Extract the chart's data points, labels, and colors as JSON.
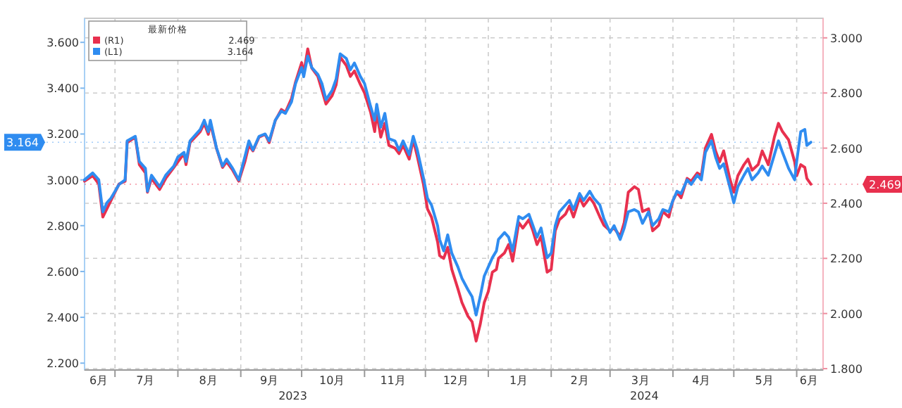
{
  "chart_data": {
    "type": "line",
    "legend_title": "最新价格",
    "legend": "top left",
    "grid": true,
    "line_style": "solid",
    "marker": "none",
    "x": [
      "2023-06-16",
      "2023-06-20",
      "2023-06-23",
      "2023-06-25",
      "2023-06-27",
      "2023-06-29",
      "2023-07-03",
      "2023-07-06",
      "2023-07-07",
      "2023-07-11",
      "2023-07-13",
      "2023-07-16",
      "2023-07-17",
      "2023-07-19",
      "2023-07-23",
      "2023-07-26",
      "2023-07-30",
      "2023-08-01",
      "2023-08-04",
      "2023-08-05",
      "2023-08-07",
      "2023-08-12",
      "2023-08-14",
      "2023-08-16",
      "2023-08-17",
      "2023-08-20",
      "2023-08-23",
      "2023-08-25",
      "2023-08-28",
      "2023-08-31",
      "2023-09-03",
      "2023-09-05",
      "2023-09-07",
      "2023-09-10",
      "2023-09-13",
      "2023-09-15",
      "2023-09-18",
      "2023-09-21",
      "2023-09-23",
      "2023-09-26",
      "2023-09-28",
      "2023-10-01",
      "2023-10-02",
      "2023-10-04",
      "2023-10-06",
      "2023-10-09",
      "2023-10-11",
      "2023-10-13",
      "2023-10-16",
      "2023-10-18",
      "2023-10-20",
      "2023-10-23",
      "2023-10-25",
      "2023-10-27",
      "2023-10-30",
      "2023-11-01",
      "2023-11-04",
      "2023-11-06",
      "2023-11-07",
      "2023-11-09",
      "2023-11-11",
      "2023-11-13",
      "2023-11-16",
      "2023-11-18",
      "2023-11-20",
      "2023-11-23",
      "2023-11-25",
      "2023-11-27",
      "2023-11-30",
      "2023-12-02",
      "2023-12-04",
      "2023-12-07",
      "2023-12-08",
      "2023-12-10",
      "2023-12-12",
      "2023-12-14",
      "2023-12-17",
      "2023-12-19",
      "2023-12-22",
      "2023-12-24",
      "2023-12-26",
      "2023-12-28",
      "2023-12-30",
      "2024-01-01",
      "2024-01-03",
      "2024-01-05",
      "2024-01-06",
      "2024-01-09",
      "2024-01-11",
      "2024-01-13",
      "2024-01-16",
      "2024-01-18",
      "2024-01-21",
      "2024-01-23",
      "2024-01-25",
      "2024-01-27",
      "2024-01-30",
      "2024-02-01",
      "2024-02-03",
      "2024-02-05",
      "2024-02-08",
      "2024-02-10",
      "2024-02-12",
      "2024-02-15",
      "2024-02-17",
      "2024-02-20",
      "2024-02-22",
      "2024-02-25",
      "2024-02-27",
      "2024-03-01",
      "2024-03-03",
      "2024-03-06",
      "2024-03-08",
      "2024-03-10",
      "2024-03-13",
      "2024-03-15",
      "2024-03-17",
      "2024-03-20",
      "2024-03-22",
      "2024-03-25",
      "2024-03-27",
      "2024-03-30",
      "2024-04-01",
      "2024-04-03",
      "2024-04-05",
      "2024-04-08",
      "2024-04-10",
      "2024-04-13",
      "2024-04-15",
      "2024-04-17",
      "2024-04-20",
      "2024-04-22",
      "2024-04-24",
      "2024-04-26",
      "2024-04-29",
      "2024-05-01",
      "2024-05-03",
      "2024-05-06",
      "2024-05-08",
      "2024-05-10",
      "2024-05-13",
      "2024-05-15",
      "2024-05-18",
      "2024-05-21",
      "2024-05-23",
      "2024-05-25",
      "2024-05-28",
      "2024-05-31",
      "2024-06-01",
      "2024-06-03",
      "2024-06-05",
      "2024-06-06",
      "2024-06-08"
    ],
    "xlim": [
      "2023-06-16",
      "2024-06-14"
    ],
    "xticks": [
      {
        "value": "2023-06-23",
        "label": "6月"
      },
      {
        "value": "2023-07-01",
        "label": null
      },
      {
        "value": "2023-07-16",
        "label": "7月"
      },
      {
        "value": "2023-08-01",
        "label": null
      },
      {
        "value": "2023-08-16",
        "label": "8月"
      },
      {
        "value": "2023-09-01",
        "label": null
      },
      {
        "value": "2023-09-15",
        "label": "9月"
      },
      {
        "value": "2023-10-01",
        "label": null
      },
      {
        "value": "2023-10-16",
        "label": "10月"
      },
      {
        "value": "2023-11-01",
        "label": null
      },
      {
        "value": "2023-11-15",
        "label": "11月"
      },
      {
        "value": "2023-12-01",
        "label": null
      },
      {
        "value": "2023-12-16",
        "label": "12月"
      },
      {
        "value": "2024-01-01",
        "label": null
      },
      {
        "value": "2024-01-16",
        "label": "1月"
      },
      {
        "value": "2024-02-01",
        "label": null
      },
      {
        "value": "2024-02-15",
        "label": "2月"
      },
      {
        "value": "2024-03-01",
        "label": null
      },
      {
        "value": "2024-03-16",
        "label": "3月"
      },
      {
        "value": "2024-04-01",
        "label": null
      },
      {
        "value": "2024-04-15",
        "label": "4月"
      },
      {
        "value": "2024-05-01",
        "label": null
      },
      {
        "value": "2024-05-16",
        "label": "5月"
      },
      {
        "value": "2024-06-01",
        "label": null
      },
      {
        "value": "2024-06-07",
        "label": "6月"
      }
    ],
    "ylim": [
      2.17,
      3.705
    ],
    "yticks": [
      {
        "value": 2.2,
        "label": "2.200"
      },
      {
        "value": 2.4,
        "label": "2.400"
      },
      {
        "value": 2.6,
        "label": "2.600"
      },
      {
        "value": 2.8,
        "label": "2.800"
      },
      {
        "value": 3.0,
        "label": "3.000"
      },
      {
        "value": 3.2,
        "label": "3.200"
      },
      {
        "value": 3.4,
        "label": "3.400"
      },
      {
        "value": 3.6,
        "label": "3.600"
      }
    ],
    "y2lim": [
      1.795,
      3.071
    ],
    "y2ticks": [
      {
        "value": 1.8,
        "label": "1.800"
      },
      {
        "value": 2.0,
        "label": "2.000"
      },
      {
        "value": 2.2,
        "label": "2.200"
      },
      {
        "value": 2.4,
        "label": "2.400"
      },
      {
        "value": 2.6,
        "label": "2.600"
      },
      {
        "value": 2.8,
        "label": "2.800"
      },
      {
        "value": 3.0,
        "label": "3.000"
      }
    ],
    "annotations": [
      "2023",
      "2024"
    ],
    "ref_lines": [
      {
        "axis": "y",
        "value": 3.164,
        "label": "3.164",
        "color": "#2f8cf0"
      },
      {
        "axis": "y2",
        "value": 2.469,
        "label": "2.469",
        "color": "#e8304e"
      }
    ],
    "series": [
      {
        "name": "(R1)                                    2.469",
        "color": "#e8304e",
        "axis": "y2",
        "values": [
          2.48,
          2.5,
          2.47,
          2.35,
          2.38,
          2.41,
          2.47,
          2.48,
          2.62,
          2.64,
          2.54,
          2.51,
          2.44,
          2.49,
          2.45,
          2.49,
          2.53,
          2.55,
          2.58,
          2.54,
          2.62,
          2.66,
          2.69,
          2.65,
          2.69,
          2.6,
          2.53,
          2.55,
          2.52,
          2.48,
          2.55,
          2.61,
          2.59,
          2.64,
          2.65,
          2.62,
          2.7,
          2.74,
          2.73,
          2.78,
          2.84,
          2.91,
          2.87,
          2.96,
          2.89,
          2.86,
          2.81,
          2.76,
          2.79,
          2.83,
          2.93,
          2.9,
          2.86,
          2.88,
          2.83,
          2.8,
          2.73,
          2.66,
          2.73,
          2.64,
          2.69,
          2.61,
          2.6,
          2.58,
          2.61,
          2.56,
          2.63,
          2.57,
          2.47,
          2.38,
          2.35,
          2.26,
          2.21,
          2.2,
          2.24,
          2.16,
          2.09,
          2.04,
          1.99,
          1.97,
          1.9,
          1.96,
          2.04,
          2.08,
          2.15,
          2.16,
          2.2,
          2.22,
          2.25,
          2.19,
          2.33,
          2.31,
          2.34,
          2.3,
          2.25,
          2.28,
          2.15,
          2.16,
          2.3,
          2.34,
          2.36,
          2.39,
          2.35,
          2.42,
          2.39,
          2.42,
          2.4,
          2.35,
          2.32,
          2.3,
          2.31,
          2.28,
          2.33,
          2.44,
          2.46,
          2.45,
          2.37,
          2.38,
          2.3,
          2.32,
          2.37,
          2.35,
          2.41,
          2.44,
          2.42,
          2.49,
          2.48,
          2.51,
          2.5,
          2.6,
          2.65,
          2.59,
          2.55,
          2.59,
          2.49,
          2.44,
          2.5,
          2.54,
          2.56,
          2.52,
          2.54,
          2.59,
          2.54,
          2.64,
          2.69,
          2.66,
          2.63,
          2.55,
          2.5,
          2.54,
          2.53,
          2.49,
          2.469
        ]
      },
      {
        "name": "(L1)                                    3.164",
        "color": "#2f8cf0",
        "values": [
          3.0,
          3.03,
          3.0,
          2.86,
          2.9,
          2.92,
          2.98,
          3.0,
          3.17,
          3.19,
          3.08,
          3.05,
          2.95,
          3.02,
          2.97,
          3.02,
          3.06,
          3.1,
          3.12,
          3.08,
          3.17,
          3.22,
          3.26,
          3.21,
          3.26,
          3.14,
          3.06,
          3.09,
          3.05,
          3.0,
          3.1,
          3.17,
          3.13,
          3.19,
          3.2,
          3.17,
          3.26,
          3.3,
          3.29,
          3.34,
          3.42,
          3.49,
          3.45,
          3.54,
          3.49,
          3.46,
          3.42,
          3.35,
          3.39,
          3.44,
          3.55,
          3.53,
          3.48,
          3.51,
          3.45,
          3.42,
          3.32,
          3.26,
          3.33,
          3.23,
          3.29,
          3.18,
          3.17,
          3.13,
          3.17,
          3.11,
          3.19,
          3.13,
          3.01,
          2.92,
          2.89,
          2.8,
          2.74,
          2.69,
          2.76,
          2.68,
          2.62,
          2.57,
          2.52,
          2.49,
          2.41,
          2.49,
          2.58,
          2.62,
          2.66,
          2.69,
          2.74,
          2.77,
          2.75,
          2.69,
          2.84,
          2.83,
          2.85,
          2.8,
          2.75,
          2.79,
          2.66,
          2.68,
          2.8,
          2.86,
          2.89,
          2.91,
          2.87,
          2.94,
          2.91,
          2.95,
          2.92,
          2.89,
          2.83,
          2.77,
          2.8,
          2.74,
          2.79,
          2.86,
          2.87,
          2.86,
          2.81,
          2.86,
          2.8,
          2.83,
          2.87,
          2.86,
          2.91,
          2.95,
          2.94,
          3.0,
          2.98,
          3.02,
          3.0,
          3.12,
          3.17,
          3.1,
          3.05,
          3.07,
          2.97,
          2.9,
          2.97,
          3.02,
          3.05,
          3.0,
          3.03,
          3.06,
          3.02,
          3.11,
          3.17,
          3.12,
          3.05,
          3.0,
          3.08,
          3.21,
          3.22,
          3.15,
          3.164
        ]
      }
    ]
  }
}
